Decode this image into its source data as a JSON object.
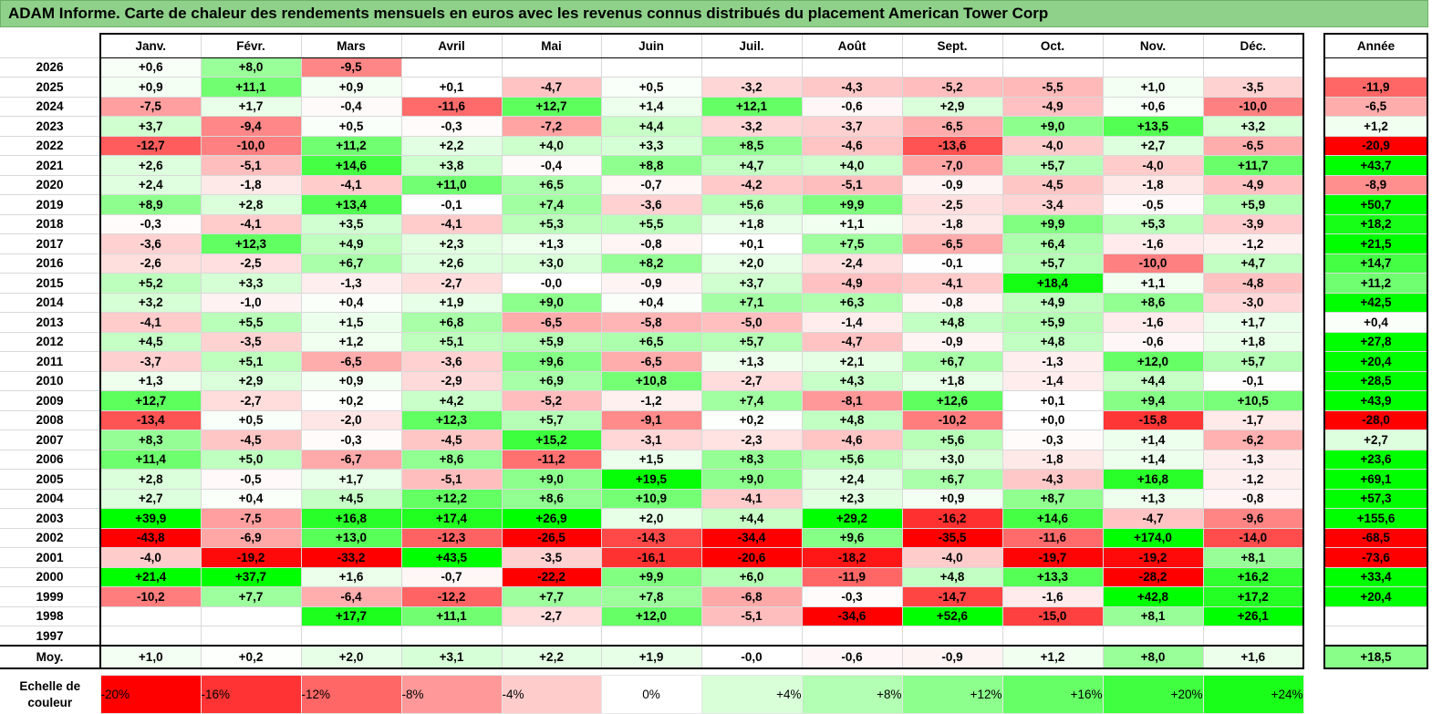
{
  "title": "ADAM Informe. Carte de chaleur des rendements mensuels en euros avec les revenus connus distribués du placement American Tower Corp",
  "chart_data": {
    "type": "heatmap",
    "title": "ADAM Informe. Carte de chaleur des rendements mensuels en euros avec les revenus connus distribués du placement American Tower Corp",
    "columns": [
      "Janv.",
      "Févr.",
      "Mars",
      "Avril",
      "Mai",
      "Juin",
      "Juil.",
      "Août",
      "Sept.",
      "Oct.",
      "Nov.",
      "Déc."
    ],
    "annual_header": "Année",
    "rows": [
      {
        "year": "2026",
        "values": [
          "+0,6",
          "+8,0",
          "-9,5",
          "",
          "",
          "",
          "",
          "",
          "",
          "",
          "",
          ""
        ],
        "annual": ""
      },
      {
        "year": "2025",
        "values": [
          "+0,9",
          "+11,1",
          "+0,9",
          "+0,1",
          "-4,7",
          "+0,5",
          "-3,2",
          "-4,3",
          "-5,2",
          "-5,5",
          "+1,0",
          "-3,5"
        ],
        "annual": "-11,9"
      },
      {
        "year": "2024",
        "values": [
          "-7,5",
          "+1,7",
          "-0,4",
          "-11,6",
          "+12,7",
          "+1,4",
          "+12,1",
          "-0,6",
          "+2,9",
          "-4,9",
          "+0,6",
          "-10,0"
        ],
        "annual": "-6,5"
      },
      {
        "year": "2023",
        "values": [
          "+3,7",
          "-9,4",
          "+0,5",
          "-0,3",
          "-7,2",
          "+4,4",
          "-3,2",
          "-3,7",
          "-6,5",
          "+9,0",
          "+13,5",
          "+3,2"
        ],
        "annual": "+1,2"
      },
      {
        "year": "2022",
        "values": [
          "-12,7",
          "-10,0",
          "+11,2",
          "+2,2",
          "+4,0",
          "+3,3",
          "+8,5",
          "-4,6",
          "-13,6",
          "-4,0",
          "+2,7",
          "-6,5"
        ],
        "annual": "-20,9"
      },
      {
        "year": "2021",
        "values": [
          "+2,6",
          "-5,1",
          "+14,6",
          "+3,8",
          "-0,4",
          "+8,8",
          "+4,7",
          "+4,0",
          "-7,0",
          "+5,7",
          "-4,0",
          "+11,7"
        ],
        "annual": "+43,7"
      },
      {
        "year": "2020",
        "values": [
          "+2,4",
          "-1,8",
          "-4,1",
          "+11,0",
          "+6,5",
          "-0,7",
          "-4,2",
          "-5,1",
          "-0,9",
          "-4,5",
          "-1,8",
          "-4,9"
        ],
        "annual": "-8,9"
      },
      {
        "year": "2019",
        "values": [
          "+8,9",
          "+2,8",
          "+13,4",
          "-0,1",
          "+7,4",
          "-3,6",
          "+5,6",
          "+9,9",
          "-2,5",
          "-3,4",
          "-0,5",
          "+5,9"
        ],
        "annual": "+50,7"
      },
      {
        "year": "2018",
        "values": [
          "-0,3",
          "-4,1",
          "+3,5",
          "-4,1",
          "+5,3",
          "+5,5",
          "+1,8",
          "+1,1",
          "-1,8",
          "+9,9",
          "+5,3",
          "-3,9"
        ],
        "annual": "+18,2"
      },
      {
        "year": "2017",
        "values": [
          "-3,6",
          "+12,3",
          "+4,9",
          "+2,3",
          "+1,3",
          "-0,8",
          "+0,1",
          "+7,5",
          "-6,5",
          "+6,4",
          "-1,6",
          "-1,2"
        ],
        "annual": "+21,5"
      },
      {
        "year": "2016",
        "values": [
          "-2,6",
          "-2,5",
          "+6,7",
          "+2,6",
          "+3,0",
          "+8,2",
          "+2,0",
          "-2,4",
          "-0,1",
          "+5,7",
          "-10,0",
          "+4,7"
        ],
        "annual": "+14,7"
      },
      {
        "year": "2015",
        "values": [
          "+5,2",
          "+3,3",
          "-1,3",
          "-2,7",
          "-0,0",
          "-0,9",
          "+3,7",
          "-4,9",
          "-4,1",
          "+18,4",
          "+1,1",
          "-4,8"
        ],
        "annual": "+11,2"
      },
      {
        "year": "2014",
        "values": [
          "+3,2",
          "-1,0",
          "+0,4",
          "+1,9",
          "+9,0",
          "+0,4",
          "+7,1",
          "+6,3",
          "-0,8",
          "+4,9",
          "+8,6",
          "-3,0"
        ],
        "annual": "+42,5"
      },
      {
        "year": "2013",
        "values": [
          "-4,1",
          "+5,5",
          "+1,5",
          "+6,8",
          "-6,5",
          "-5,8",
          "-5,0",
          "-1,4",
          "+4,8",
          "+5,9",
          "-1,6",
          "+1,7"
        ],
        "annual": "+0,4"
      },
      {
        "year": "2012",
        "values": [
          "+4,5",
          "-3,5",
          "+1,2",
          "+5,1",
          "+5,9",
          "+6,5",
          "+5,7",
          "-4,7",
          "-0,9",
          "+4,8",
          "-0,6",
          "+1,8"
        ],
        "annual": "+27,8"
      },
      {
        "year": "2011",
        "values": [
          "-3,7",
          "+5,1",
          "-6,5",
          "-3,6",
          "+9,6",
          "-6,5",
          "+1,3",
          "+2,1",
          "+6,7",
          "-1,3",
          "+12,0",
          "+5,7"
        ],
        "annual": "+20,4"
      },
      {
        "year": "2010",
        "values": [
          "+1,3",
          "+2,9",
          "+0,9",
          "-2,9",
          "+6,9",
          "+10,8",
          "-2,7",
          "+4,3",
          "+1,8",
          "-1,4",
          "+4,4",
          "-0,1"
        ],
        "annual": "+28,5"
      },
      {
        "year": "2009",
        "values": [
          "+12,7",
          "-2,7",
          "+0,2",
          "+4,2",
          "-5,2",
          "-1,2",
          "+7,4",
          "-8,1",
          "+12,6",
          "+0,1",
          "+9,4",
          "+10,5"
        ],
        "annual": "+43,9"
      },
      {
        "year": "2008",
        "values": [
          "-13,4",
          "+0,5",
          "-2,0",
          "+12,3",
          "+5,7",
          "-9,1",
          "+0,2",
          "+4,8",
          "-10,2",
          "+0,0",
          "-15,8",
          "-1,7"
        ],
        "annual": "-28,0"
      },
      {
        "year": "2007",
        "values": [
          "+8,3",
          "-4,5",
          "-0,3",
          "-4,5",
          "+15,2",
          "-3,1",
          "-2,3",
          "-4,6",
          "+5,6",
          "-0,3",
          "+1,4",
          "-6,2"
        ],
        "annual": "+2,7"
      },
      {
        "year": "2006",
        "values": [
          "+11,4",
          "+5,0",
          "-6,7",
          "+8,6",
          "-11,2",
          "+1,5",
          "+8,3",
          "+5,6",
          "+3,0",
          "-1,8",
          "+1,4",
          "-1,3"
        ],
        "annual": "+23,6"
      },
      {
        "year": "2005",
        "values": [
          "+2,8",
          "-0,5",
          "+1,7",
          "-5,1",
          "+9,0",
          "+19,5",
          "+9,0",
          "+2,4",
          "+6,7",
          "-4,3",
          "+16,8",
          "-1,2"
        ],
        "annual": "+69,1"
      },
      {
        "year": "2004",
        "values": [
          "+2,7",
          "+0,4",
          "+4,5",
          "+12,2",
          "+8,6",
          "+10,9",
          "-4,1",
          "+2,3",
          "+0,9",
          "+8,7",
          "+1,3",
          "-0,8"
        ],
        "annual": "+57,3"
      },
      {
        "year": "2003",
        "values": [
          "+39,9",
          "-7,5",
          "+16,8",
          "+17,4",
          "+26,9",
          "+2,0",
          "+4,4",
          "+29,2",
          "-16,2",
          "+14,6",
          "-4,7",
          "-9,6"
        ],
        "annual": "+155,6"
      },
      {
        "year": "2002",
        "values": [
          "-43,8",
          "-6,9",
          "+13,0",
          "-12,3",
          "-26,5",
          "-14,3",
          "-34,4",
          "+9,6",
          "-35,5",
          "-11,6",
          "+174,0",
          "-14,0"
        ],
        "annual": "-68,5"
      },
      {
        "year": "2001",
        "values": [
          "-4,0",
          "-19,2",
          "-33,2",
          "+43,5",
          "-3,5",
          "-16,1",
          "-20,6",
          "-18,2",
          "-4,0",
          "-19,7",
          "-19,2",
          "+8,1"
        ],
        "annual": "-73,6"
      },
      {
        "year": "2000",
        "values": [
          "+21,4",
          "+37,7",
          "+1,6",
          "-0,7",
          "-22,2",
          "+9,9",
          "+6,0",
          "-11,9",
          "+4,8",
          "+13,3",
          "-28,2",
          "+16,2"
        ],
        "annual": "+33,4"
      },
      {
        "year": "1999",
        "values": [
          "-10,2",
          "+7,7",
          "-6,4",
          "-12,2",
          "+7,7",
          "+7,8",
          "-6,8",
          "-0,3",
          "-14,7",
          "-1,6",
          "+42,8",
          "+17,2"
        ],
        "annual": "+20,4"
      },
      {
        "year": "1998",
        "values": [
          "",
          "",
          "+17,7",
          "+11,1",
          "-2,7",
          "+12,0",
          "-5,1",
          "-34,6",
          "+52,6",
          "-15,0",
          "+8,1",
          "+26,1"
        ],
        "annual": ""
      },
      {
        "year": "1997",
        "values": [
          "",
          "",
          "",
          "",
          "",
          "",
          "",
          "",
          "",
          "",
          "",
          ""
        ],
        "annual": ""
      }
    ],
    "average": {
      "label": "Moy.",
      "values": [
        "+1,0",
        "+0,2",
        "+2,0",
        "+3,1",
        "+2,2",
        "+1,9",
        "-0,0",
        "-0,6",
        "-0,9",
        "+1,2",
        "+8,0",
        "+1,6"
      ],
      "annual": "+18,5"
    },
    "scale": {
      "label_line1": "Echelle de",
      "label_line2": "couleur",
      "stops": [
        {
          "label": "-20%",
          "value": -20,
          "color": "#ff0000",
          "align": "left"
        },
        {
          "label": "-16%",
          "value": -16,
          "color": "#ff3333",
          "align": "left"
        },
        {
          "label": "-12%",
          "value": -12,
          "color": "#ff6666",
          "align": "left"
        },
        {
          "label": "-8%",
          "value": -8,
          "color": "#ff9999",
          "align": "left"
        },
        {
          "label": "-4%",
          "value": -4,
          "color": "#ffcccc",
          "align": "left"
        },
        {
          "label": "0%",
          "value": 0,
          "color": "#ffffff",
          "align": "center"
        },
        {
          "label": "+4%",
          "value": 4,
          "color": "#d9ffd9",
          "align": "right"
        },
        {
          "label": "+8%",
          "value": 8,
          "color": "#b3ffb3",
          "align": "right"
        },
        {
          "label": "+12%",
          "value": 12,
          "color": "#8cff8c",
          "align": "right"
        },
        {
          "label": "+16%",
          "value": 16,
          "color": "#66ff66",
          "align": "right"
        },
        {
          "label": "+20%",
          "value": 20,
          "color": "#40ff40",
          "align": "right"
        },
        {
          "label": "+24%",
          "value": 24,
          "color": "#1aff1a",
          "align": "right"
        }
      ]
    }
  }
}
